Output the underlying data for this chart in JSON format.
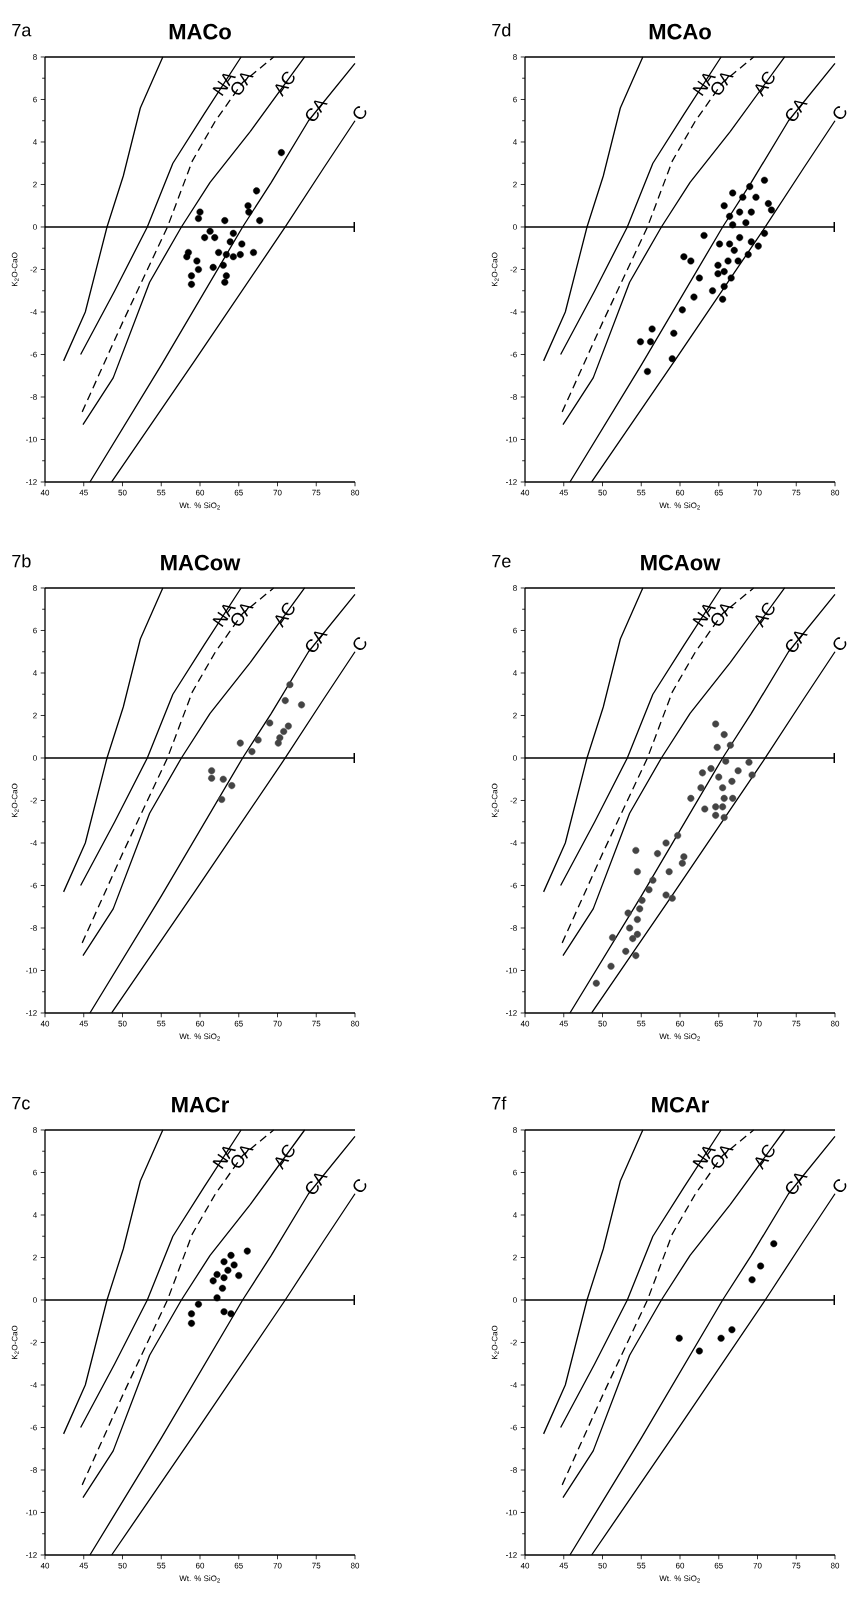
{
  "chart_data": [
    {
      "type": "scatter",
      "title": "MACo",
      "xlabel": "Wt. % SiO$_{2}$",
      "ylabel": "K$_{2}$O-CaO",
      "xlim": [
        40,
        80
      ],
      "ylim": [
        -12,
        8
      ],
      "xticks": [
        40,
        45,
        50,
        55,
        60,
        65,
        70,
        75,
        80
      ],
      "yticks": [
        -12,
        -10,
        -8,
        -6,
        -4,
        -2,
        0,
        2,
        4,
        6,
        8
      ],
      "annotations": [
        "7a",
        "NA",
        "OA",
        "AC",
        "CA",
        "C"
      ],
      "ref_lines": [
        {
          "axis": "y",
          "value": 0
        }
      ],
      "series": [
        {
          "type": "line",
          "color": "#000000",
          "line_style": "solid",
          "marker": "none",
          "x": [
            42.4,
            45.2,
            48,
            50.1,
            52.3,
            55.2
          ],
          "values": [
            -6.3,
            -4,
            0,
            2.4,
            5.6,
            8
          ]
        },
        {
          "type": "line",
          "color": "#000000",
          "line_style": "solid",
          "marker": "none",
          "x": [
            44.6,
            49,
            53.2,
            56.5,
            60.5,
            65.3
          ],
          "values": [
            -6,
            -3,
            0,
            3,
            5.3,
            8
          ]
        },
        {
          "type": "line",
          "color": "#000000",
          "line_style": "dashed",
          "marker": "none",
          "x": [
            44.8,
            50,
            55.8,
            59,
            62,
            65.5,
            69.5
          ],
          "values": [
            -8.7,
            -4.5,
            0,
            3.1,
            5,
            6.8,
            8
          ]
        },
        {
          "type": "line",
          "color": "#000000",
          "line_style": "solid",
          "marker": "none",
          "x": [
            44.9,
            48.8,
            53.5,
            57.6,
            61.3,
            66.5,
            73.5
          ],
          "values": [
            -9.3,
            -7.1,
            -2.6,
            0,
            2.1,
            4.5,
            8
          ]
        },
        {
          "type": "line",
          "color": "#000000",
          "line_style": "solid",
          "marker": "none",
          "x": [
            45.8,
            55,
            65.5,
            69.2,
            74,
            80
          ],
          "values": [
            -12,
            -6.5,
            0,
            2.1,
            5,
            7.7
          ]
        },
        {
          "type": "line",
          "color": "#000000",
          "line_style": "solid",
          "marker": "none",
          "x": [
            48.6,
            59.3,
            71,
            76,
            80
          ],
          "values": [
            -12,
            -6.3,
            0,
            2.8,
            5
          ]
        },
        {
          "color": "#000000",
          "marker": "circle",
          "x": [
            70.5,
            67.3,
            66.2,
            66.3,
            67.7,
            60.0,
            59.8,
            63.2,
            61.3,
            60.6,
            61.9,
            64.3,
            63.9,
            65.4,
            62.4,
            63.4,
            64.3,
            65.2,
            66.9,
            58.5,
            58.3,
            59.6,
            61.7,
            59.8,
            63.0,
            58.9,
            58.9,
            63.4,
            63.2
          ],
          "values": [
            3.5,
            1.7,
            1.0,
            0.7,
            0.3,
            0.7,
            0.4,
            0.3,
            -0.2,
            -0.5,
            -0.5,
            -0.3,
            -0.7,
            -0.8,
            -1.2,
            -1.3,
            -1.4,
            -1.3,
            -1.2,
            -1.2,
            -1.4,
            -1.6,
            -1.9,
            -2.0,
            -1.8,
            -2.3,
            -2.7,
            -2.3,
            -2.6
          ]
        }
      ]
    },
    {
      "type": "scatter",
      "title": "MCAo",
      "xlabel": "Wt. % SiO$_{2}$",
      "ylabel": "K$_{2}$O-CaO",
      "xlim": [
        40,
        80
      ],
      "ylim": [
        -12,
        8
      ],
      "xticks": [
        40,
        45,
        50,
        55,
        60,
        65,
        70,
        75,
        80
      ],
      "yticks": [
        -12,
        -10,
        -8,
        -6,
        -4,
        -2,
        0,
        2,
        4,
        6,
        8
      ],
      "annotations": [
        "7d",
        "NA",
        "OA",
        "AC",
        "CA",
        "C"
      ],
      "ref_lines": [
        {
          "axis": "y",
          "value": 0
        }
      ],
      "series": [
        {
          "type": "line",
          "color": "#000000",
          "line_style": "solid",
          "marker": "none",
          "x": [
            42.4,
            45.2,
            48,
            50.1,
            52.3,
            55.2
          ],
          "values": [
            -6.3,
            -4,
            0,
            2.4,
            5.6,
            8
          ]
        },
        {
          "type": "line",
          "color": "#000000",
          "line_style": "solid",
          "marker": "none",
          "x": [
            44.6,
            49,
            53.2,
            56.5,
            60.5,
            65.3
          ],
          "values": [
            -6,
            -3,
            0,
            3,
            5.3,
            8
          ]
        },
        {
          "type": "line",
          "color": "#000000",
          "line_style": "dashed",
          "marker": "none",
          "x": [
            44.8,
            50,
            55.8,
            59,
            62,
            65.5,
            69.5
          ],
          "values": [
            -8.7,
            -4.5,
            0,
            3.1,
            5,
            6.8,
            8
          ]
        },
        {
          "type": "line",
          "color": "#000000",
          "line_style": "solid",
          "marker": "none",
          "x": [
            44.9,
            48.8,
            53.5,
            57.6,
            61.3,
            66.5,
            73.5
          ],
          "values": [
            -9.3,
            -7.1,
            -2.6,
            0,
            2.1,
            4.5,
            8
          ]
        },
        {
          "type": "line",
          "color": "#000000",
          "line_style": "solid",
          "marker": "none",
          "x": [
            45.8,
            55,
            65.5,
            69.2,
            74,
            80
          ],
          "values": [
            -12,
            -6.5,
            0,
            2.1,
            5,
            7.7
          ]
        },
        {
          "type": "line",
          "color": "#000000",
          "line_style": "solid",
          "marker": "none",
          "x": [
            48.6,
            59.3,
            71,
            76,
            80
          ],
          "values": [
            -12,
            -6.3,
            0,
            2.8,
            5
          ]
        },
        {
          "color": "#000000",
          "marker": "circle",
          "x": [
            70.9,
            69.0,
            66.8,
            68.1,
            69.8,
            71.4,
            71.8,
            65.7,
            66.4,
            67.7,
            69.2,
            66.8,
            68.5,
            70.9,
            63.1,
            65.1,
            66.4,
            67.7,
            69.2,
            70.1,
            67.0,
            68.8,
            66.2,
            67.5,
            60.5,
            61.4,
            64.9,
            64.9,
            65.7,
            66.6,
            62.5,
            64.2,
            65.7,
            61.8,
            65.5,
            60.3,
            56.4,
            56.2,
            59.2,
            54.9,
            59.0,
            55.8
          ],
          "values": [
            2.2,
            1.9,
            1.6,
            1.4,
            1.4,
            1.1,
            0.8,
            1.0,
            0.5,
            0.7,
            0.7,
            0.1,
            0.2,
            -0.3,
            -0.4,
            -0.8,
            -0.8,
            -0.5,
            -0.7,
            -0.9,
            -1.1,
            -1.3,
            -1.6,
            -1.6,
            -1.4,
            -1.6,
            -1.8,
            -2.2,
            -2.1,
            -2.4,
            -2.4,
            -3.0,
            -2.8,
            -3.3,
            -3.4,
            -3.9,
            -4.8,
            -5.4,
            -5.0,
            -5.4,
            -6.2,
            -6.8
          ]
        }
      ]
    },
    {
      "type": "scatter",
      "title": "MACow",
      "xlabel": "Wt. % SiO$_{2}$",
      "ylabel": "K$_{2}$O-CaO",
      "xlim": [
        40,
        80
      ],
      "ylim": [
        -12,
        8
      ],
      "xticks": [
        40,
        45,
        50,
        55,
        60,
        65,
        70,
        75,
        80
      ],
      "yticks": [
        -12,
        -10,
        -8,
        -6,
        -4,
        -2,
        0,
        2,
        4,
        6,
        8
      ],
      "annotations": [
        "7b",
        "NA",
        "OA",
        "AC",
        "CA",
        "C"
      ],
      "ref_lines": [
        {
          "axis": "y",
          "value": 0
        }
      ],
      "series": [
        {
          "type": "line",
          "color": "#000000",
          "line_style": "solid",
          "marker": "none",
          "x": [
            42.4,
            45.2,
            48,
            50.1,
            52.3,
            55.2
          ],
          "values": [
            -6.3,
            -4,
            0,
            2.4,
            5.6,
            8
          ]
        },
        {
          "type": "line",
          "color": "#000000",
          "line_style": "solid",
          "marker": "none",
          "x": [
            44.6,
            49,
            53.2,
            56.5,
            60.5,
            65.3
          ],
          "values": [
            -6,
            -3,
            0,
            3,
            5.3,
            8
          ]
        },
        {
          "type": "line",
          "color": "#000000",
          "line_style": "dashed",
          "marker": "none",
          "x": [
            44.8,
            50,
            55.8,
            59,
            62,
            65.5,
            69.5
          ],
          "values": [
            -8.7,
            -4.5,
            0,
            3.1,
            5,
            6.8,
            8
          ]
        },
        {
          "type": "line",
          "color": "#000000",
          "line_style": "solid",
          "marker": "none",
          "x": [
            44.9,
            48.8,
            53.5,
            57.6,
            61.3,
            66.5,
            73.5
          ],
          "values": [
            -9.3,
            -7.1,
            -2.6,
            0,
            2.1,
            4.5,
            8
          ]
        },
        {
          "type": "line",
          "color": "#000000",
          "line_style": "solid",
          "marker": "none",
          "x": [
            45.8,
            55,
            65.5,
            69.2,
            74,
            80
          ],
          "values": [
            -12,
            -6.5,
            0,
            2.1,
            5,
            7.7
          ]
        },
        {
          "type": "line",
          "color": "#000000",
          "line_style": "solid",
          "marker": "none",
          "x": [
            48.6,
            59.3,
            71,
            76,
            80
          ],
          "values": [
            -12,
            -6.3,
            0,
            2.8,
            5
          ]
        },
        {
          "color": "#444444",
          "marker": "circle",
          "x": [
            71.6,
            71.0,
            73.1,
            69.0,
            71.4,
            70.8,
            70.3,
            70.1,
            67.5,
            65.2,
            66.7,
            61.5,
            61.5,
            63.0,
            64.1,
            62.8
          ],
          "values": [
            3.45,
            2.7,
            2.5,
            1.65,
            1.5,
            1.25,
            0.95,
            0.7,
            0.85,
            0.7,
            0.3,
            -0.6,
            -0.95,
            -1.0,
            -1.3,
            -1.95
          ]
        }
      ]
    },
    {
      "type": "scatter",
      "title": "MCAow",
      "xlabel": "Wt. % SiO$_{2}$",
      "ylabel": "K$_{2}$O-CaO",
      "xlim": [
        40,
        80
      ],
      "ylim": [
        -12,
        8
      ],
      "xticks": [
        40,
        45,
        50,
        55,
        60,
        65,
        70,
        75,
        80
      ],
      "yticks": [
        -12,
        -10,
        -8,
        -6,
        -4,
        -2,
        0,
        2,
        4,
        6,
        8
      ],
      "annotations": [
        "7e",
        "NA",
        "OA",
        "AC",
        "CA",
        "C"
      ],
      "ref_lines": [
        {
          "axis": "y",
          "value": 0
        }
      ],
      "series": [
        {
          "type": "line",
          "color": "#000000",
          "line_style": "solid",
          "marker": "none",
          "x": [
            42.4,
            45.2,
            48,
            50.1,
            52.3,
            55.2
          ],
          "values": [
            -6.3,
            -4,
            0,
            2.4,
            5.6,
            8
          ]
        },
        {
          "type": "line",
          "color": "#000000",
          "line_style": "solid",
          "marker": "none",
          "x": [
            44.6,
            49,
            53.2,
            56.5,
            60.5,
            65.3
          ],
          "values": [
            -6,
            -3,
            0,
            3,
            5.3,
            8
          ]
        },
        {
          "type": "line",
          "color": "#000000",
          "line_style": "dashed",
          "marker": "none",
          "x": [
            44.8,
            50,
            55.8,
            59,
            62,
            65.5,
            69.5
          ],
          "values": [
            -8.7,
            -4.5,
            0,
            3.1,
            5,
            6.8,
            8
          ]
        },
        {
          "type": "line",
          "color": "#000000",
          "line_style": "solid",
          "marker": "none",
          "x": [
            44.9,
            48.8,
            53.5,
            57.6,
            61.3,
            66.5,
            73.5
          ],
          "values": [
            -9.3,
            -7.1,
            -2.6,
            0,
            2.1,
            4.5,
            8
          ]
        },
        {
          "type": "line",
          "color": "#000000",
          "line_style": "solid",
          "marker": "none",
          "x": [
            45.8,
            55,
            65.5,
            69.2,
            74,
            80
          ],
          "values": [
            -12,
            -6.5,
            0,
            2.1,
            5,
            7.7
          ]
        },
        {
          "type": "line",
          "color": "#000000",
          "line_style": "solid",
          "marker": "none",
          "x": [
            48.6,
            59.3,
            71,
            76,
            80
          ],
          "values": [
            -12,
            -6.3,
            0,
            2.8,
            5
          ]
        },
        {
          "color": "#444444",
          "marker": "circle",
          "x": [
            64.6,
            65.7,
            64.8,
            66.5,
            65.9,
            68.9,
            69.3,
            64.0,
            62.9,
            67.5,
            65.0,
            66.7,
            62.7,
            61.4,
            65.5,
            65.7,
            66.8,
            63.2,
            64.6,
            65.5,
            64.6,
            65.7,
            59.7,
            58.2,
            54.3,
            57.1,
            60.5,
            60.3,
            54.5,
            58.6,
            56.5,
            56.0,
            58.2,
            59.0,
            55.1,
            54.8,
            53.3,
            54.5,
            53.5,
            54.5,
            53.9,
            51.3,
            53.0,
            54.3,
            51.1,
            49.2
          ],
          "values": [
            1.6,
            1.1,
            0.5,
            0.6,
            -0.15,
            -0.2,
            -0.8,
            -0.5,
            -0.7,
            -0.6,
            -0.9,
            -1.1,
            -1.4,
            -1.9,
            -1.4,
            -1.9,
            -1.9,
            -2.4,
            -2.3,
            -2.3,
            -2.7,
            -2.8,
            -3.65,
            -4.0,
            -4.35,
            -4.5,
            -4.65,
            -4.95,
            -5.35,
            -5.35,
            -5.75,
            -6.2,
            -6.45,
            -6.6,
            -6.7,
            -7.1,
            -7.3,
            -7.6,
            -8.0,
            -8.3,
            -8.5,
            -8.45,
            -9.1,
            -9.3,
            -9.8,
            -10.6
          ]
        }
      ]
    },
    {
      "type": "scatter",
      "title": "MACr",
      "xlabel": "Wt. % SiO$_{2}$",
      "ylabel": "K$_{2}$O-CaO",
      "xlim": [
        40,
        80
      ],
      "ylim": [
        -12,
        8
      ],
      "xticks": [
        40,
        45,
        50,
        55,
        60,
        65,
        70,
        75,
        80
      ],
      "yticks": [
        -12,
        -10,
        -8,
        -6,
        -4,
        -2,
        0,
        2,
        4,
        6,
        8
      ],
      "annotations": [
        "7c",
        "NA",
        "OA",
        "AC",
        "CA",
        "C"
      ],
      "ref_lines": [
        {
          "axis": "y",
          "value": 0
        }
      ],
      "series": [
        {
          "type": "line",
          "color": "#000000",
          "line_style": "solid",
          "marker": "none",
          "x": [
            42.4,
            45.2,
            48,
            50.1,
            52.3,
            55.2
          ],
          "values": [
            -6.3,
            -4,
            0,
            2.4,
            5.6,
            8
          ]
        },
        {
          "type": "line",
          "color": "#000000",
          "line_style": "solid",
          "marker": "none",
          "x": [
            44.6,
            49,
            53.2,
            56.5,
            60.5,
            65.3
          ],
          "values": [
            -6,
            -3,
            0,
            3,
            5.3,
            8
          ]
        },
        {
          "type": "line",
          "color": "#000000",
          "line_style": "dashed",
          "marker": "none",
          "x": [
            44.8,
            50,
            55.8,
            59,
            62,
            65.5,
            69.5
          ],
          "values": [
            -8.7,
            -4.5,
            0,
            3.1,
            5,
            6.8,
            8
          ]
        },
        {
          "type": "line",
          "color": "#000000",
          "line_style": "solid",
          "marker": "none",
          "x": [
            44.9,
            48.8,
            53.5,
            57.6,
            61.3,
            66.5,
            73.5
          ],
          "values": [
            -9.3,
            -7.1,
            -2.6,
            0,
            2.1,
            4.5,
            8
          ]
        },
        {
          "type": "line",
          "color": "#000000",
          "line_style": "solid",
          "marker": "none",
          "x": [
            45.8,
            55,
            65.5,
            69.2,
            74,
            80
          ],
          "values": [
            -12,
            -6.5,
            0,
            2.1,
            5,
            7.7
          ]
        },
        {
          "type": "line",
          "color": "#000000",
          "line_style": "solid",
          "marker": "none",
          "x": [
            48.6,
            59.3,
            71,
            76,
            80
          ],
          "values": [
            -12,
            -6.3,
            0,
            2.8,
            5
          ]
        },
        {
          "color": "#000000",
          "marker": "circle",
          "x": [
            66.1,
            64.0,
            63.1,
            64.4,
            63.6,
            62.2,
            63.1,
            65.0,
            61.7,
            62.9,
            62.2,
            59.8,
            58.9,
            58.9,
            63.1,
            64.0
          ],
          "values": [
            2.3,
            2.1,
            1.8,
            1.65,
            1.4,
            1.2,
            1.05,
            1.15,
            0.9,
            0.55,
            0.1,
            -0.2,
            -0.65,
            -1.1,
            -0.55,
            -0.65
          ]
        }
      ]
    },
    {
      "type": "scatter",
      "title": "MCAr",
      "xlabel": "Wt. % SiO$_{2}$",
      "ylabel": "K$_{2}$O-CaO",
      "xlim": [
        40,
        80
      ],
      "ylim": [
        -12,
        8
      ],
      "xticks": [
        40,
        45,
        50,
        55,
        60,
        65,
        70,
        75,
        80
      ],
      "yticks": [
        -12,
        -10,
        -8,
        -6,
        -4,
        -2,
        0,
        2,
        4,
        6,
        8
      ],
      "annotations": [
        "7f",
        "NA",
        "OA",
        "AC",
        "CA",
        "C"
      ],
      "ref_lines": [
        {
          "axis": "y",
          "value": 0
        }
      ],
      "series": [
        {
          "type": "line",
          "color": "#000000",
          "line_style": "solid",
          "marker": "none",
          "x": [
            42.4,
            45.2,
            48,
            50.1,
            52.3,
            55.2
          ],
          "values": [
            -6.3,
            -4,
            0,
            2.4,
            5.6,
            8
          ]
        },
        {
          "type": "line",
          "color": "#000000",
          "line_style": "solid",
          "marker": "none",
          "x": [
            44.6,
            49,
            53.2,
            56.5,
            60.5,
            65.3
          ],
          "values": [
            -6,
            -3,
            0,
            3,
            5.3,
            8
          ]
        },
        {
          "type": "line",
          "color": "#000000",
          "line_style": "dashed",
          "marker": "none",
          "x": [
            44.8,
            50,
            55.8,
            59,
            62,
            65.5,
            69.5
          ],
          "values": [
            -8.7,
            -4.5,
            0,
            3.1,
            5,
            6.8,
            8
          ]
        },
        {
          "type": "line",
          "color": "#000000",
          "line_style": "solid",
          "marker": "none",
          "x": [
            44.9,
            48.8,
            53.5,
            57.6,
            61.3,
            66.5,
            73.5
          ],
          "values": [
            -9.3,
            -7.1,
            -2.6,
            0,
            2.1,
            4.5,
            8
          ]
        },
        {
          "type": "line",
          "color": "#000000",
          "line_style": "solid",
          "marker": "none",
          "x": [
            45.8,
            55,
            65.5,
            69.2,
            74,
            80
          ],
          "values": [
            -12,
            -6.5,
            0,
            2.1,
            5,
            7.7
          ]
        },
        {
          "type": "line",
          "color": "#000000",
          "line_style": "solid",
          "marker": "none",
          "x": [
            48.6,
            59.3,
            71,
            76,
            80
          ],
          "values": [
            -12,
            -6.3,
            0,
            2.8,
            5
          ]
        },
        {
          "color": "#000000",
          "marker": "circle",
          "x": [
            72.1,
            70.4,
            69.3,
            59.9,
            62.5,
            65.3,
            66.7
          ],
          "values": [
            2.65,
            1.6,
            0.95,
            -1.8,
            -2.4,
            -1.8,
            -1.4
          ]
        }
      ]
    }
  ]
}
